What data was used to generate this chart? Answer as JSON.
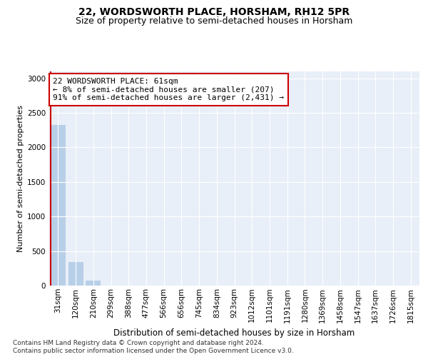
{
  "title1": "22, WORDSWORTH PLACE, HORSHAM, RH12 5PR",
  "title2": "Size of property relative to semi-detached houses in Horsham",
  "xlabel": "Distribution of semi-detached houses by size in Horsham",
  "ylabel": "Number of semi-detached properties",
  "categories": [
    "31sqm",
    "120sqm",
    "210sqm",
    "299sqm",
    "388sqm",
    "477sqm",
    "566sqm",
    "656sqm",
    "745sqm",
    "834sqm",
    "923sqm",
    "1012sqm",
    "1101sqm",
    "1191sqm",
    "1280sqm",
    "1369sqm",
    "1458sqm",
    "1547sqm",
    "1637sqm",
    "1726sqm",
    "1815sqm"
  ],
  "values": [
    2320,
    340,
    70,
    2,
    0,
    0,
    0,
    0,
    0,
    0,
    0,
    0,
    0,
    0,
    0,
    0,
    0,
    0,
    0,
    0,
    0
  ],
  "bar_color": "#b8cfe8",
  "annotation_line1": "22 WORDSWORTH PLACE: 61sqm",
  "annotation_line2": "← 8% of semi-detached houses are smaller (207)",
  "annotation_line3": "91% of semi-detached houses are larger (2,431) →",
  "annotation_box_facecolor": "#ffffff",
  "annotation_box_edgecolor": "#cc0000",
  "vline_color": "#cc0000",
  "ylim": [
    0,
    3100
  ],
  "yticks": [
    0,
    500,
    1000,
    1500,
    2000,
    2500,
    3000
  ],
  "footer1": "Contains HM Land Registry data © Crown copyright and database right 2024.",
  "footer2": "Contains public sector information licensed under the Open Government Licence v3.0.",
  "plot_bg_color": "#e8eff8",
  "fig_bg_color": "#ffffff",
  "grid_color": "#ffffff",
  "title1_fontsize": 10,
  "title2_fontsize": 9,
  "xlabel_fontsize": 8.5,
  "ylabel_fontsize": 8,
  "tick_fontsize": 7.5,
  "annotation_fontsize": 8,
  "footer_fontsize": 6.5
}
